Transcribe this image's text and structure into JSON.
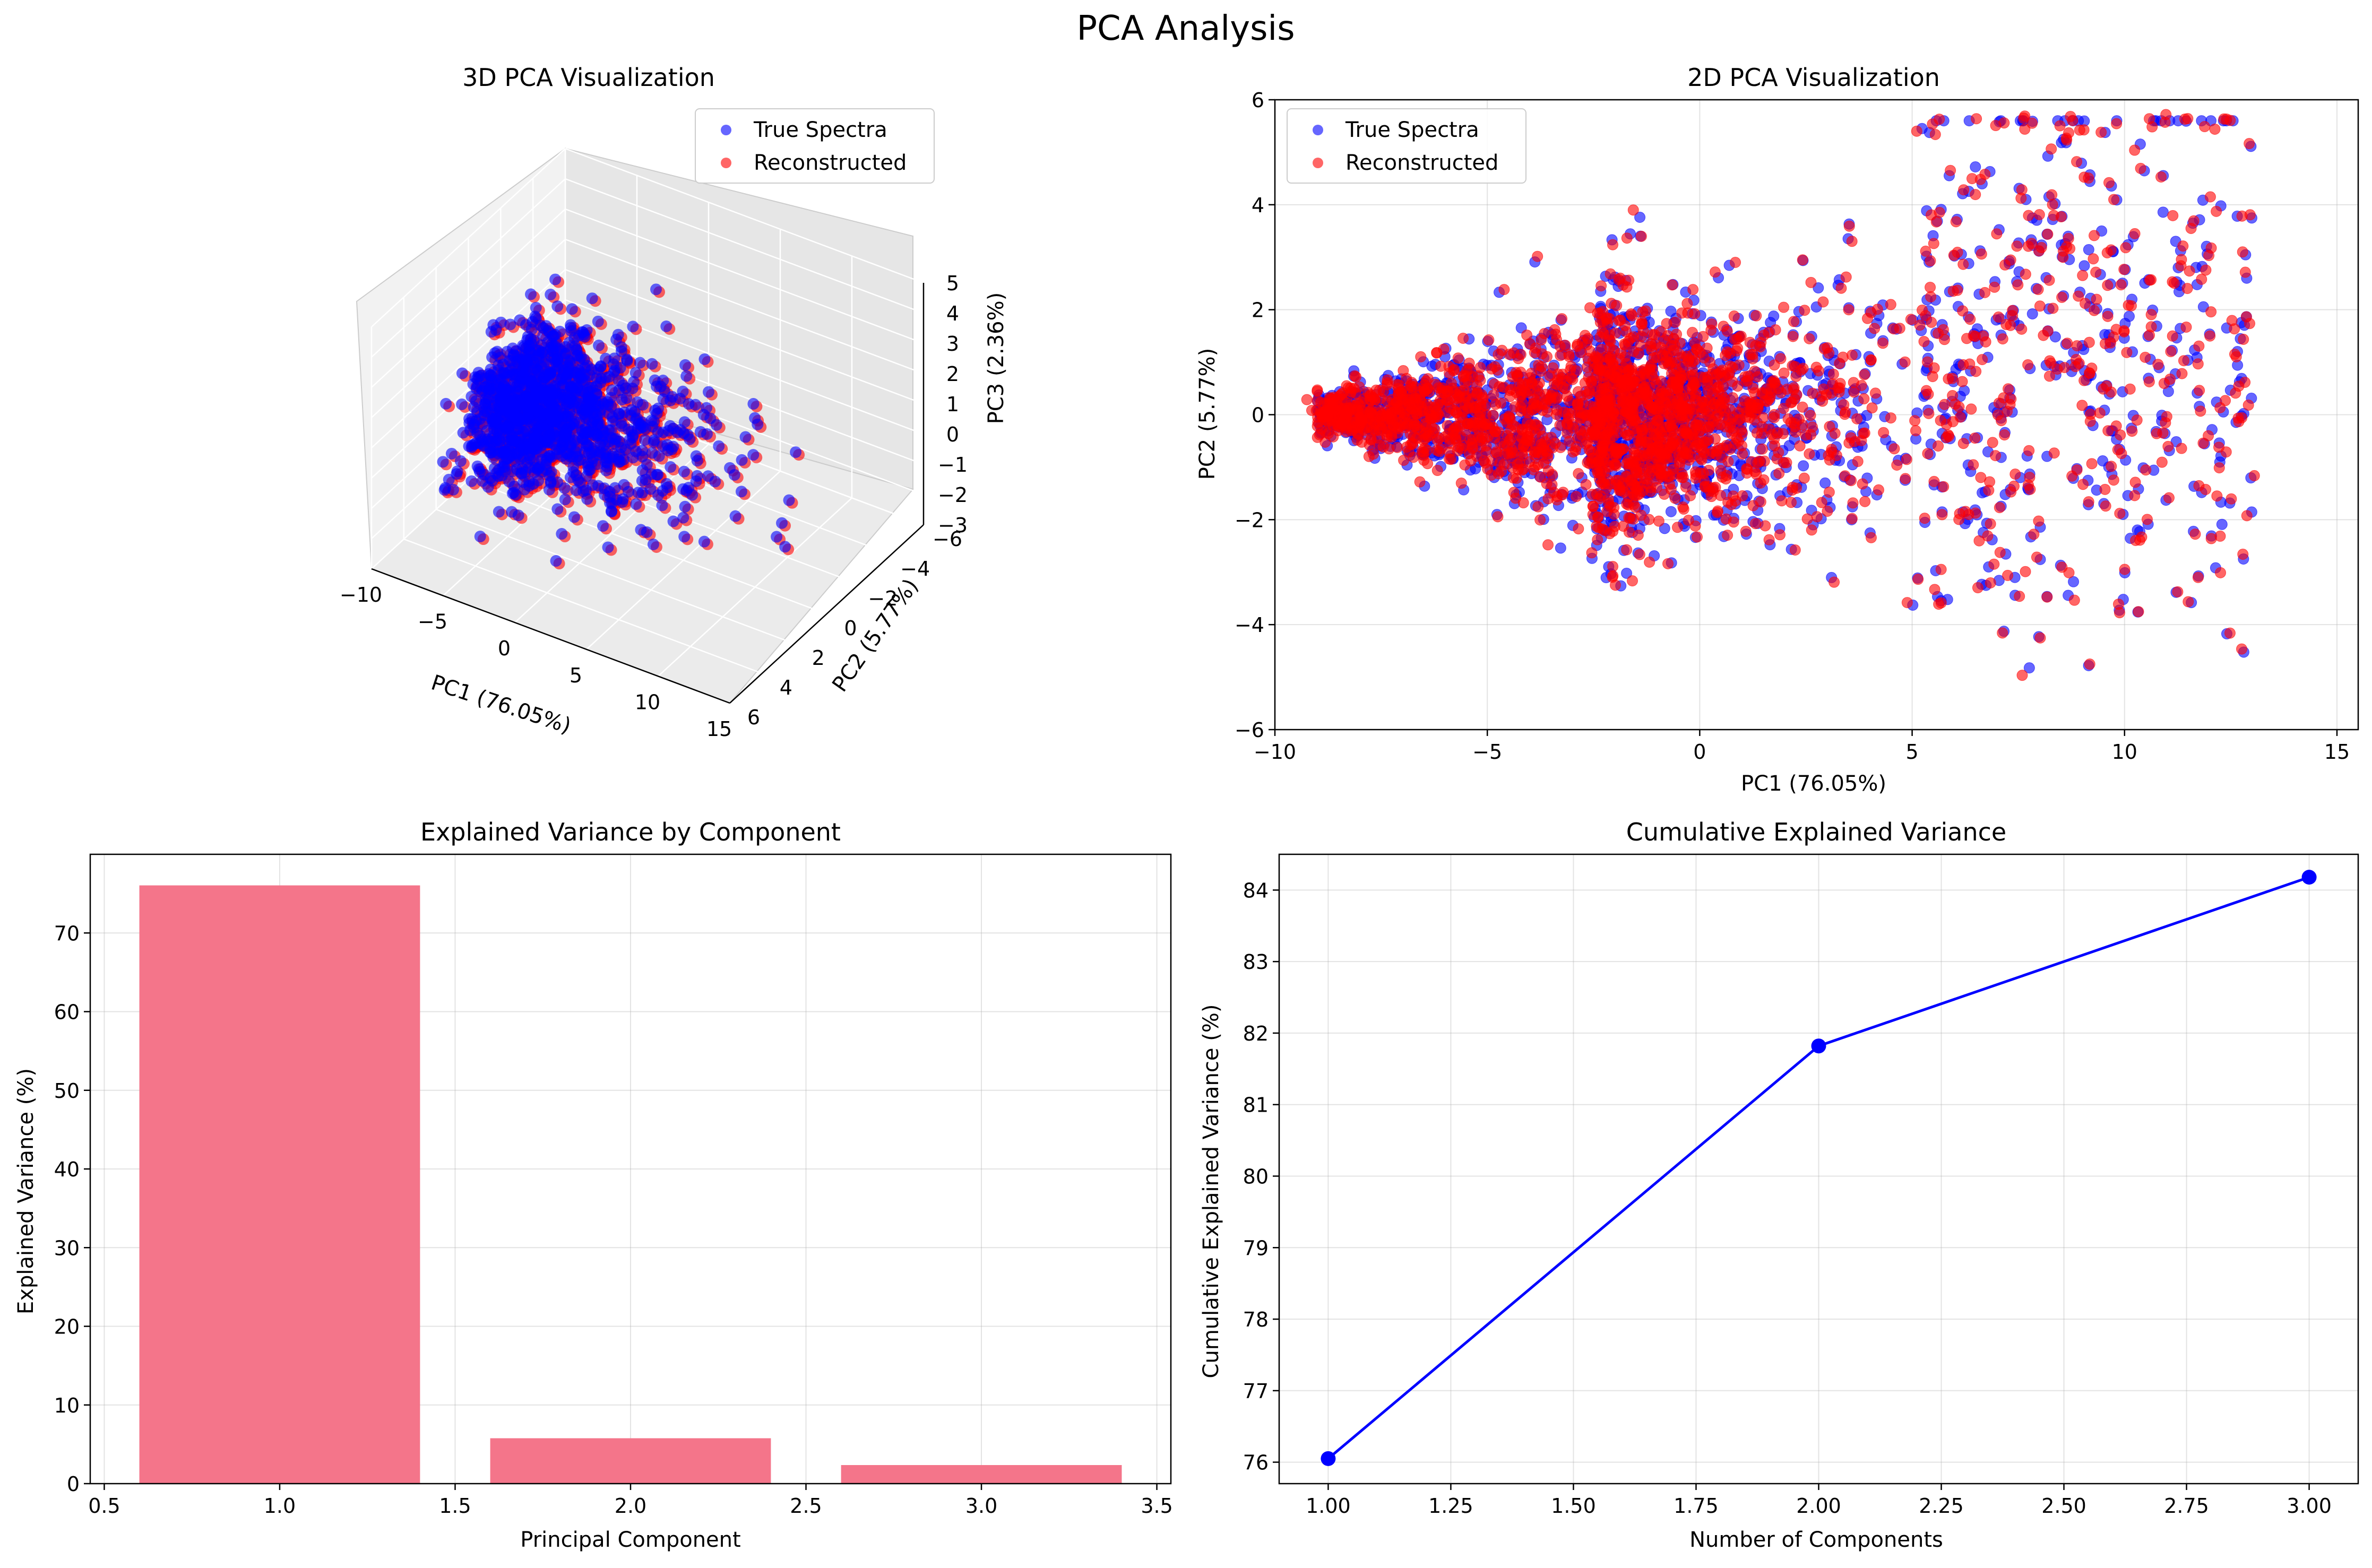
{
  "figure": {
    "suptitle": "PCA Analysis"
  },
  "legend": {
    "true_label": "True Spectra",
    "recon_label": "Reconstructed"
  },
  "colors": {
    "true": "#0000ff",
    "recon": "#ff0000",
    "bar": "#f4758a",
    "line": "#0000ff",
    "grid": "#b0b0b0",
    "pane": "#f2f2f2"
  },
  "chart_data": [
    {
      "type": "scatter",
      "projection": "3d",
      "title": "3D PCA Visualization",
      "xlabel": "PC1 (76.05%)",
      "ylabel": "PC2 (5.77%)",
      "zlabel": "PC3 (2.36%)",
      "xlim": [
        -10,
        15
      ],
      "ylim": [
        -6,
        6
      ],
      "zlim": [
        -3,
        5
      ],
      "xticks": [
        -10,
        -5,
        0,
        5,
        10,
        15
      ],
      "yticks": [
        -6,
        -4,
        -2,
        0,
        2,
        4,
        6
      ],
      "zticks": [
        -3,
        -2,
        -1,
        0,
        1,
        2,
        3,
        4,
        5
      ],
      "legend_position": "top-right",
      "series": [
        {
          "name": "True Spectra",
          "color": "#0000ff"
        },
        {
          "name": "Reconstructed",
          "color": "#ff0000"
        }
      ]
    },
    {
      "type": "scatter",
      "title": "2D PCA Visualization",
      "xlabel": "PC1 (76.05%)",
      "ylabel": "PC2 (5.77%)",
      "xlim": [
        -10,
        15.5
      ],
      "ylim": [
        -6,
        6
      ],
      "xticks": [
        -10,
        -5,
        0,
        5,
        10,
        15
      ],
      "yticks": [
        -6,
        -4,
        -2,
        0,
        2,
        4,
        6
      ],
      "grid": true,
      "legend_position": "top-left",
      "series": [
        {
          "name": "True Spectra",
          "color": "#0000ff"
        },
        {
          "name": "Reconstructed",
          "color": "#ff0000"
        }
      ]
    },
    {
      "type": "bar",
      "title": "Explained Variance by Component",
      "xlabel": "Principal Component",
      "ylabel": "Explained Variance (%)",
      "categories": [
        1,
        2,
        3
      ],
      "values": [
        76.05,
        5.77,
        2.36
      ],
      "bar_width": 0.8,
      "xlim": [
        0.46,
        3.54
      ],
      "ylim": [
        0,
        80
      ],
      "xticks": [
        "0.5",
        "1.0",
        "1.5",
        "2.0",
        "2.5",
        "3.0",
        "3.5"
      ],
      "yticks": [
        0,
        10,
        20,
        30,
        40,
        50,
        60,
        70
      ],
      "grid": true
    },
    {
      "type": "line",
      "title": "Cumulative Explained Variance",
      "xlabel": "Number of Components",
      "ylabel": "Cumulative Explained Variance (%)",
      "x": [
        1,
        2,
        3
      ],
      "y": [
        76.05,
        81.82,
        84.18
      ],
      "xlim": [
        0.9,
        3.1
      ],
      "ylim": [
        75.7,
        84.5
      ],
      "xticks": [
        "1.00",
        "1.25",
        "1.50",
        "1.75",
        "2.00",
        "2.25",
        "2.50",
        "2.75",
        "3.00"
      ],
      "yticks": [
        76,
        77,
        78,
        79,
        80,
        81,
        82,
        83,
        84
      ],
      "grid": true,
      "marker": "o"
    }
  ]
}
